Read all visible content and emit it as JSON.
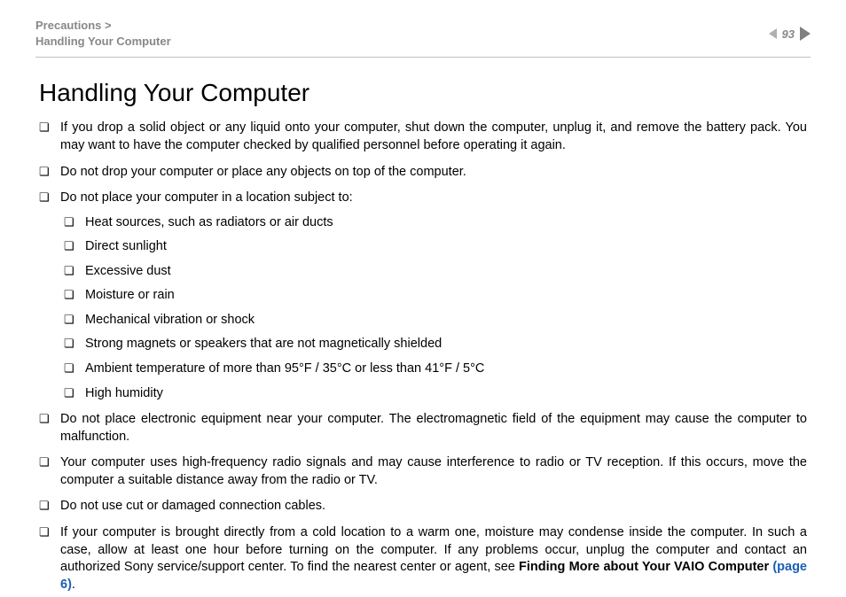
{
  "header": {
    "breadcrumb_section": "Precautions >",
    "breadcrumb_page": "Handling Your Computer",
    "page_number": "93"
  },
  "title": "Handling Your Computer",
  "bullets": {
    "b1": "If you drop a solid object or any liquid onto your computer, shut down the computer, unplug it, and remove the battery pack. You may want to have the computer checked by qualified personnel before operating it again.",
    "b2": "Do not drop your computer or place any objects on top of the computer.",
    "b3": "Do not place your computer in a location subject to:",
    "b3_sub": {
      "s1": "Heat sources, such as radiators or air ducts",
      "s2": "Direct sunlight",
      "s3": "Excessive dust",
      "s4": "Moisture or rain",
      "s5": "Mechanical vibration or shock",
      "s6": "Strong magnets or speakers that are not magnetically shielded",
      "s7": "Ambient temperature of more than 95°F / 35°C or less than 41°F / 5°C",
      "s8": "High humidity"
    },
    "b4": "Do not place electronic equipment near your computer. The electromagnetic field of the equipment may cause the computer to malfunction.",
    "b5": "Your computer uses high-frequency radio signals and may cause interference to radio or TV reception. If this occurs, move the computer a suitable distance away from the radio or TV.",
    "b6": "Do not use cut or damaged connection cables.",
    "b7_pre": "If your computer is brought directly from a cold location to a warm one, moisture may condense inside the computer. In such a case, allow at least one hour before turning on the computer. If any problems occur, unplug the computer and contact an authorized Sony service/support center. To find the nearest center or agent, see ",
    "b7_bold": "Finding More about Your VAIO Computer ",
    "b7_link": "(page 6)",
    "b7_post": "."
  }
}
